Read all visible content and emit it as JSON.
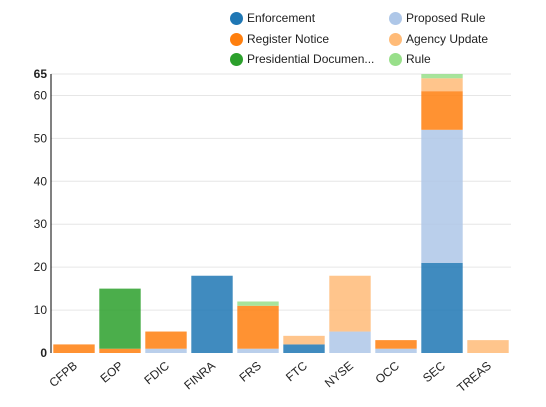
{
  "chart_data": {
    "type": "bar",
    "stacked": true,
    "categories": [
      "CFPB",
      "EOP",
      "FDIC",
      "FINRA",
      "FRS",
      "FTC",
      "NYSE",
      "OCC",
      "SEC",
      "TREAS"
    ],
    "ylim": [
      0,
      65
    ],
    "y_ticks": [
      0,
      10,
      20,
      30,
      40,
      50,
      60,
      65
    ],
    "grid": true,
    "legend_position": "top",
    "series": [
      {
        "name": "Enforcement",
        "color": "#1f77b4",
        "values": [
          0,
          0,
          0,
          18,
          0,
          2,
          0,
          0,
          21,
          0
        ]
      },
      {
        "name": "Proposed Rule",
        "color": "#aec7e8",
        "values": [
          0,
          0,
          1,
          0,
          1,
          0,
          5,
          1,
          31,
          0
        ]
      },
      {
        "name": "Register Notice",
        "color": "#ff7f0e",
        "values": [
          2,
          1,
          4,
          0,
          10,
          0,
          0,
          2,
          9,
          0
        ]
      },
      {
        "name": "Agency Update",
        "color": "#ffbb78",
        "values": [
          0,
          0,
          0,
          0,
          0,
          2,
          13,
          0,
          3,
          3
        ]
      },
      {
        "name": "Presidential Documen...",
        "color": "#2ca02c",
        "values": [
          0,
          14,
          0,
          0,
          0,
          0,
          0,
          0,
          0,
          0
        ]
      },
      {
        "name": "Rule",
        "color": "#98df8a",
        "values": [
          0,
          0,
          0,
          0,
          1,
          0,
          0,
          0,
          1,
          0
        ]
      }
    ]
  }
}
